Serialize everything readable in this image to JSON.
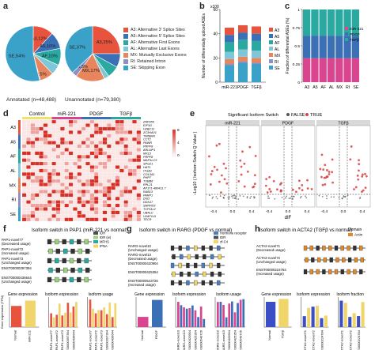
{
  "panels": {
    "a": "a",
    "b": "b",
    "c": "c",
    "d": "d",
    "e": "e",
    "f": "f",
    "g": "g",
    "h": "h"
  },
  "colors": {
    "A3": "#e8533d",
    "A5": "#3b6fb6",
    "AF": "#2aa9a0",
    "AL": "#7fc7d8",
    "MX": "#e8855d",
    "RI": "#8f8fc3",
    "SE": "#3aa2c9",
    "miR221": "#d9458e",
    "PDGF": "#3b6fb6",
    "TGFb": "#2aa9a0",
    "ctrl": "#f2e26a",
    "heat_hi": "#d73027",
    "heat_lo": "#ffffff"
  },
  "panel_a": {
    "pies": [
      {
        "caption": "Annotated (n=48,488)",
        "slices": [
          {
            "code": "A3",
            "value": 12,
            "label": "A3,12%"
          },
          {
            "code": "A5",
            "value": 10,
            "label": "A5,10%"
          },
          {
            "code": "AF",
            "value": 10,
            "label": "AF,10%"
          },
          {
            "code": "AL",
            "value": 6,
            "label": ""
          },
          {
            "code": "MX",
            "value": 8,
            "label": ""
          },
          {
            "code": "RI",
            "value": 0.5,
            "label": "RI,0.5%"
          },
          {
            "code": "SE",
            "value": 54,
            "label": "SE,54%"
          }
        ]
      },
      {
        "caption": "Unannotated (n=79,380)",
        "slices": [
          {
            "code": "A3",
            "value": 25,
            "label": "A3,25%"
          },
          {
            "code": "A5",
            "value": 8,
            "label": ""
          },
          {
            "code": "AF",
            "value": 7,
            "label": ""
          },
          {
            "code": "AL",
            "value": 3,
            "label": ""
          },
          {
            "code": "MX",
            "value": 17,
            "label": "MX,17%"
          },
          {
            "code": "RI",
            "value": 3,
            "label": "RI,3%"
          },
          {
            "code": "SE",
            "value": 37,
            "label": "SE,37%"
          }
        ]
      }
    ],
    "legend": [
      {
        "code": "A3",
        "text": "A3: Alternative 3' Splice Sites"
      },
      {
        "code": "A5",
        "text": "A5: Alternative 5' Splice Sites"
      },
      {
        "code": "AF",
        "text": "AF: Alternative First Exons"
      },
      {
        "code": "AL",
        "text": "AL: Alternative Last Exons"
      },
      {
        "code": "MX",
        "text": "MX: Mutually Exclusive Exons"
      },
      {
        "code": "RI",
        "text": "RI: Retained Intron"
      },
      {
        "code": "SE",
        "text": "SE: Skipping Exon"
      }
    ]
  },
  "chart_data": [
    {
      "type": "bar",
      "categories": [
        "miR-221",
        "PDGF",
        "TGFβ"
      ],
      "series": [
        {
          "name": "SE",
          "values": [
            14,
            16,
            15
          ]
        },
        {
          "name": "RI",
          "values": [
            1,
            1,
            1
          ]
        },
        {
          "name": "MX",
          "values": [
            4,
            4,
            4
          ]
        },
        {
          "name": "AL",
          "values": [
            6,
            6,
            6
          ]
        },
        {
          "name": "AF",
          "values": [
            8,
            8,
            8
          ]
        },
        {
          "name": "A5",
          "values": [
            6,
            6,
            6
          ]
        },
        {
          "name": "A3",
          "values": [
            6,
            6,
            6
          ]
        }
      ],
      "ylabel": "Number of differentially spliced ASEs",
      "ylim": [
        0,
        60
      ],
      "yticks": [
        0,
        20,
        40,
        60
      ],
      "scale_label": "x100"
    },
    {
      "type": "bar",
      "categories": [
        "A3",
        "A5",
        "AF",
        "AL",
        "MX",
        "RI",
        "SE"
      ],
      "series": [
        {
          "name": "miR-221",
          "values": [
            0.33,
            0.33,
            0.33,
            0.33,
            0.33,
            0.33,
            0.33
          ]
        },
        {
          "name": "PDGF",
          "values": [
            0.31,
            0.31,
            0.31,
            0.31,
            0.31,
            0.31,
            0.31
          ]
        },
        {
          "name": "TGFβ",
          "values": [
            0.36,
            0.36,
            0.36,
            0.36,
            0.36,
            0.36,
            0.36
          ]
        }
      ],
      "ylabel": "Fraction of differential ASEs (%)",
      "ylim": [
        0,
        1
      ],
      "yticks": [
        0,
        0.25,
        0.5,
        0.75,
        1
      ]
    }
  ],
  "panel_d": {
    "groups": [
      "Control",
      "miR-221",
      "PDGF",
      "TGFβ"
    ],
    "row_groups": [
      "A3",
      "A5",
      "AF",
      "AL",
      "MX",
      "RI",
      "SE"
    ],
    "genes": [
      "ZNF655",
      "EIF3G",
      "H2BC11",
      "ZC3HAV1",
      "TMSB4X",
      "CCT2",
      "PAWR",
      "PRPF8",
      "ARL6IP1",
      "MXL5",
      "PRPF8",
      "MAP1LC3",
      "SPG21",
      "HAT1",
      "ITGB1",
      "COL3A1",
      "PHPT",
      "TUBB6",
      "RPL21",
      "AP1T1-480411.7",
      "RAB13",
      "PARP1",
      "DXD",
      "DDX17",
      "SNRPD3",
      "TCP11L2",
      "UBALC",
      "U2AF1L5",
      "TECR"
    ],
    "scale": [
      "8",
      "4",
      "0"
    ]
  },
  "panel_e": {
    "title": "Significant Isoform Switch",
    "legend_false": "FALSE",
    "legend_true": "TRUE",
    "facets": [
      "miR-221",
      "PDGF",
      "TGFβ"
    ],
    "xlabel": "dIF",
    "ylabel": "−Log10 ( Isoform Switch Q Value )",
    "xticks": [
      "-0.4",
      "0.0",
      "0.4"
    ]
  },
  "panel_f": {
    "title": "Isoform switch in PAP1 (miR-221 vs normal)",
    "isoforms": [
      {
        "name": "PAP1-novel77",
        "note": "(Decreased usage)"
      },
      {
        "name": "PAP1-novel72",
        "note": "(Increased usage)"
      },
      {
        "name": "PAP1-novel73",
        "note": "(Unchanged usage)"
      },
      {
        "name": "ENST00000397394",
        "note": ""
      },
      {
        "name": "ENST00000436644",
        "note": "(Unchanged usage)"
      }
    ],
    "legend": [
      "IDR",
      "IDR (w)",
      "MFHS",
      "IPNA"
    ],
    "sub": [
      "Gene expression",
      "Isoform expression",
      "Isoform usage"
    ],
    "ylab": "Gene expression (TPM)",
    "xcats": [
      "Normal",
      "miR-221"
    ],
    "isocats": [
      "PAP1-novel77",
      "PAP1-novel72",
      "PAP1-novel73",
      "ENST00000397394",
      "ENST00000436644"
    ]
  },
  "panel_g": {
    "title": "Isoform switch in RARG (PDGF vs normal)",
    "isoforms": [
      {
        "name": "RARG-novel10",
        "note": "(Unchanged usage)"
      },
      {
        "name": "RARG-novel13",
        "note": "(Decreased usage)"
      },
      {
        "name": "ENST00000420904",
        "note": ""
      },
      {
        "name": "ENST00000425354",
        "note": ""
      },
      {
        "name": "ENST00000543726",
        "note": "(Increased usage)"
      }
    ],
    "legend": [
      "Hormone receptor",
      "IDR",
      "zf-C4"
    ],
    "sub": [
      "Gene expression",
      "Isoform expression",
      "Isoform usage"
    ],
    "xcats": [
      "Normal",
      "PDGF"
    ],
    "isocats": [
      "RARG-novel10",
      "RARG-novel13",
      "ENST00000420904",
      "ENST00000425354",
      "ENST00000543726"
    ]
  },
  "panel_h": {
    "title": "Isoform switch in ACTA2 (TGFβ vs normal)",
    "domain_label": "Domain",
    "domain": "Actin",
    "isoforms": [
      {
        "name": "ACTA2-novel71",
        "note": "(Decreased usage)"
      },
      {
        "name": "ACTA2-novel72",
        "note": "(Unchanged usage)"
      },
      {
        "name": "ENST00000224784",
        "note": "(Increased usage)"
      }
    ],
    "sub": [
      "Gene expression",
      "Isoform expression",
      "Isoform fraction"
    ],
    "xcats": [
      "Normal",
      "TGFβ"
    ],
    "isocats": [
      "ACTA2-novel71",
      "ACTA2-novel72",
      "ENST00000224784"
    ]
  }
}
